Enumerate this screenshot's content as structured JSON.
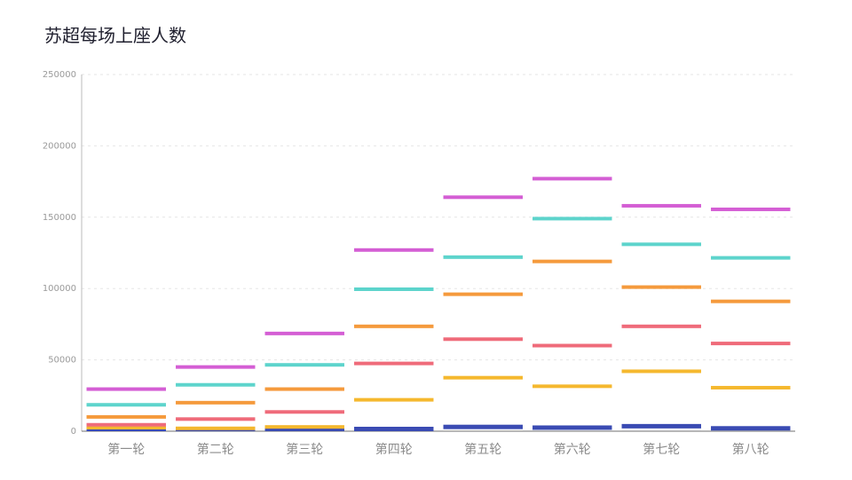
{
  "chart_data": {
    "type": "bar",
    "title": "苏超每场上座人数",
    "categories": [
      "第一轮",
      "第二轮",
      "第三轮",
      "第四轮",
      "第五轮",
      "第六轮",
      "第七轮",
      "第八轮"
    ],
    "ylim": [
      0,
      250000
    ],
    "yticks": [
      "0",
      "50000",
      "100000",
      "150000",
      "200000",
      "250000"
    ],
    "grid": true,
    "series": [
      {
        "color": "#3a4bb3",
        "values": [
          500,
          500,
          500,
          1500,
          3000,
          2500,
          3500,
          2000
        ]
      },
      {
        "color": "#f5b82e",
        "values": [
          2500,
          2000,
          3000,
          22000,
          37500,
          31500,
          42000,
          30500
        ]
      },
      {
        "color": "#ef6b7a",
        "values": [
          4500,
          8500,
          13500,
          47500,
          64500,
          60000,
          73500,
          61500
        ]
      },
      {
        "color": "#f59a3c",
        "values": [
          10000,
          20000,
          29500,
          73500,
          96000,
          119000,
          101000,
          91000
        ]
      },
      {
        "color": "#5dd4cc",
        "values": [
          18500,
          32500,
          46500,
          99500,
          122000,
          149000,
          131000,
          121500
        ]
      },
      {
        "color": "#d45ed4",
        "values": [
          29500,
          45000,
          68500,
          127000,
          164000,
          177000,
          158000,
          155500
        ]
      }
    ]
  }
}
